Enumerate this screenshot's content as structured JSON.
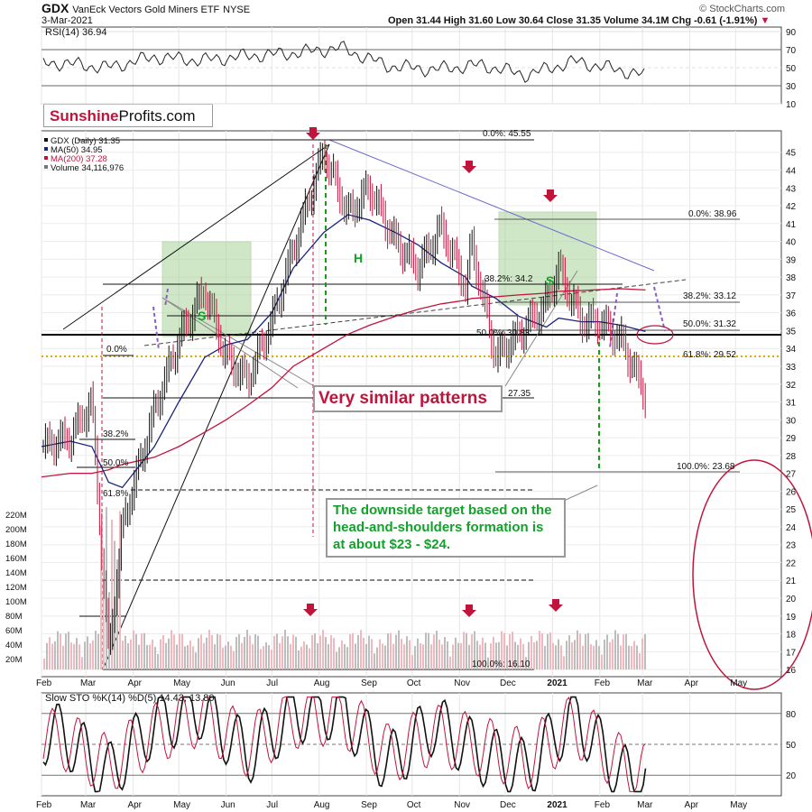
{
  "header": {
    "symbol": "GDX",
    "name": "VanEck Vectors Gold Miners ETF",
    "exchange": "NYSE",
    "date": "3-Mar-2021",
    "source": "© StockCharts.com",
    "ohlc": "Open 31.44  High 31.60  Low 30.64  Close 31.35  Volume 34.1M  Chg -0.61 (-1.91%)",
    "chg_marker": "▼"
  },
  "branding": {
    "part1": "Sunshine",
    "part2": "Profits.com"
  },
  "annotations": {
    "similar": "Very similar patterns",
    "target": "The downside target based on the head-and-shoulders formation is at about $23 - $24.",
    "labels": [
      "S",
      "H",
      "S"
    ]
  },
  "colors": {
    "price_up": "#111111",
    "price_down": "#c0143c",
    "ma50": "#1a237e",
    "ma200": "#c0143c",
    "pattern_fill": "#a8d39a",
    "green_text": "#12a12a",
    "purple": "#8a5cc8",
    "fib_gold": "#e0a800"
  },
  "chart_data": [
    {
      "type": "line",
      "title": "RSI(14) 36.94",
      "y_ticks": [
        10,
        30,
        50,
        70,
        90
      ],
      "ylim": [
        10,
        95
      ],
      "x": [
        "2020-02",
        "2020-03",
        "2020-04",
        "2020-05",
        "2020-06",
        "2020-07",
        "2020-08",
        "2020-09",
        "2020-10",
        "2020-11",
        "2020-12",
        "2021-01",
        "2021-02",
        "2021-03"
      ],
      "series": [
        {
          "values": [
            55,
            50,
            62,
            58,
            63,
            66,
            72,
            52,
            48,
            53,
            42,
            57,
            47,
            37
          ]
        }
      ]
    },
    {
      "type": "ohlc",
      "legend": [
        "GDX (Daily) 31.35",
        "MA(50) 34.95",
        "MA(200) 37.28",
        "Volume 34,116,976"
      ],
      "y_ticks": [
        16,
        17,
        18,
        19,
        20,
        21,
        22,
        23,
        24,
        25,
        26,
        27,
        28,
        29,
        30,
        31,
        32,
        33,
        34,
        35,
        36,
        37,
        38,
        39,
        40,
        41,
        42,
        43,
        44,
        45
      ],
      "x_ticks": [
        "Feb",
        "Mar",
        "Apr",
        "May",
        "Jun",
        "Jul",
        "Aug",
        "Sep",
        "Oct",
        "Nov",
        "Dec",
        "2021",
        "Feb",
        "Mar",
        "Apr",
        "May"
      ],
      "price_x": [
        "2020-02-01",
        "2020-02-20",
        "2020-03-05",
        "2020-03-16",
        "2020-03-25",
        "2020-04-15",
        "2020-05-01",
        "2020-05-18",
        "2020-06-01",
        "2020-06-15",
        "2020-07-01",
        "2020-07-15",
        "2020-08-04",
        "2020-08-20",
        "2020-09-03",
        "2020-09-20",
        "2020-10-05",
        "2020-10-20",
        "2020-11-05",
        "2020-11-09",
        "2020-11-25",
        "2020-12-10",
        "2020-12-28",
        "2021-01-05",
        "2021-01-20",
        "2021-02-01",
        "2021-02-15",
        "2021-03-03"
      ],
      "close": [
        28.5,
        29.0,
        31.0,
        16.8,
        24.0,
        30.5,
        34.5,
        37.3,
        33.5,
        32.2,
        35.5,
        39.5,
        45.0,
        41.5,
        43.0,
        40.0,
        38.5,
        40.8,
        37.5,
        39.8,
        33.5,
        34.8,
        36.5,
        38.5,
        35.5,
        35.5,
        34.5,
        31.35
      ],
      "ma50": [
        28.5,
        28.8,
        28.5,
        26.5,
        26.2,
        28.5,
        31.0,
        33.5,
        34.2,
        34.5,
        36.0,
        38.5,
        40.5,
        41.5,
        41.2,
        40.5,
        39.8,
        38.8,
        38.0,
        37.5,
        36.8,
        35.8,
        35.2,
        35.7,
        35.5,
        35.5,
        35.3,
        34.95
      ],
      "ma200": [
        26.8,
        27.0,
        27.0,
        27.2,
        27.5,
        27.9,
        28.5,
        29.3,
        30.0,
        30.8,
        31.8,
        33.0,
        34.0,
        34.8,
        35.3,
        35.8,
        36.2,
        36.5,
        36.7,
        36.8,
        36.9,
        37.0,
        37.1,
        37.2,
        37.25,
        37.3,
        37.35,
        37.28
      ],
      "fib_left": [
        "0.0%",
        "38.2%",
        "50.0%",
        "61.8%",
        "100.0%: 16.10",
        "27.35"
      ],
      "fib_right": [
        "0.0%: 45.55",
        "0.0%: 38.96",
        "38.2%: 33.12",
        "50.0%: 31.32",
        "61.8%: 29.52",
        "100.0%: 23.68"
      ],
      "fib_mid": [
        "38.2%: 34.2",
        "50.0%: 30.83"
      ],
      "volume_ticks": [
        "20M",
        "40M",
        "60M",
        "80M",
        "100M",
        "120M",
        "140M",
        "160M",
        "180M",
        "200M",
        "220M"
      ]
    },
    {
      "type": "line",
      "title": "Slow STO %K(14) %D(5) 14.43, 13.80",
      "y_ticks": [
        20,
        50,
        80
      ],
      "ylim": [
        0,
        100
      ],
      "x": [
        "2020-02",
        "2020-03",
        "2020-04",
        "2020-05",
        "2020-06",
        "2020-07",
        "2020-08",
        "2020-09",
        "2020-10",
        "2020-11",
        "2020-12",
        "2021-01",
        "2021-02",
        "2021-03"
      ],
      "series": [
        {
          "name": "%K",
          "values": [
            60,
            20,
            70,
            85,
            40,
            80,
            85,
            30,
            70,
            40,
            25,
            80,
            20,
            14.43
          ]
        },
        {
          "name": "%D",
          "values": [
            55,
            30,
            60,
            78,
            48,
            75,
            80,
            40,
            60,
            48,
            35,
            70,
            30,
            13.8
          ]
        }
      ]
    }
  ]
}
